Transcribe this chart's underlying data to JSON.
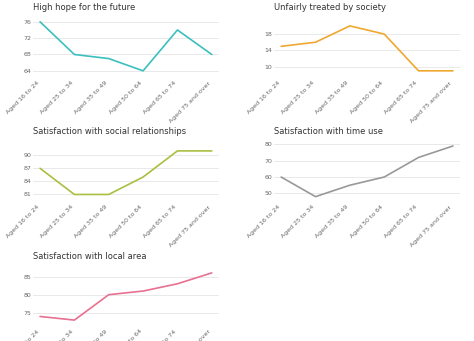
{
  "age_labels": [
    "Aged 16 to 24",
    "Aged 25 to 34",
    "Aged 35 to 49",
    "Aged 50 to 64",
    "Aged 65 to 74",
    "Aged 75 and over"
  ],
  "charts": [
    {
      "title": "High hope for the future",
      "values": [
        76,
        68,
        67,
        64,
        74,
        68
      ],
      "color": "#3bbfbf",
      "ylim": [
        62,
        78
      ],
      "yticks": [
        64,
        68,
        72,
        76
      ],
      "row": 0,
      "col": 0
    },
    {
      "title": "Unfairly treated by society",
      "values": [
        15,
        16,
        20,
        18,
        9,
        9
      ],
      "color": "#f0a830",
      "ylim": [
        7,
        23
      ],
      "yticks": [
        10,
        14,
        18
      ],
      "row": 0,
      "col": 1
    },
    {
      "title": "Satisfaction with social relationships",
      "values": [
        87,
        81,
        81,
        85,
        91,
        91
      ],
      "color": "#a8c040",
      "ylim": [
        79,
        94
      ],
      "yticks": [
        81,
        84,
        87,
        90
      ],
      "row": 1,
      "col": 0
    },
    {
      "title": "Satisfaction with time use",
      "values": [
        60,
        48,
        55,
        60,
        72,
        79
      ],
      "color": "#999999",
      "ylim": [
        44,
        84
      ],
      "yticks": [
        50,
        60,
        70,
        80
      ],
      "row": 1,
      "col": 1
    },
    {
      "title": "Satisfaction with local area",
      "values": [
        74,
        73,
        80,
        81,
        83,
        86
      ],
      "color": "#e87090",
      "ylim": [
        71,
        89
      ],
      "yticks": [
        75,
        80,
        85
      ],
      "row": 2,
      "col": 0
    }
  ],
  "background_color": "#ffffff",
  "grid_color": "#e0e0e0",
  "tick_label_fontsize": 4.5,
  "title_fontsize": 6.0,
  "line_width": 1.2
}
